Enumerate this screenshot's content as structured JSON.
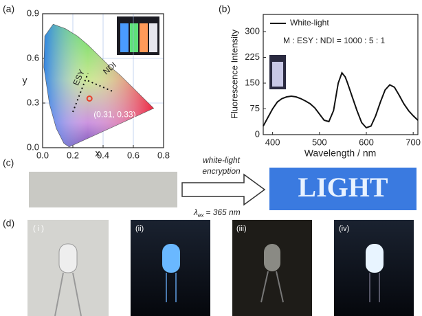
{
  "chart_data": [
    {
      "type": "scatter",
      "x_label": "x",
      "y_label": "y",
      "xlim": [
        0,
        0.8
      ],
      "ylim": [
        0,
        0.9
      ],
      "xticks": [
        {
          "value": 0,
          "label": "0.0"
        },
        0.2,
        0.4,
        0.6,
        0.8
      ],
      "yticks": [
        {
          "value": 0,
          "label": "0.0"
        },
        0.3,
        0.6,
        0.9
      ],
      "grid": true,
      "x": [
        0.31
      ],
      "values": [
        0.33
      ],
      "value_labels": [
        "(0.31, 0.33)"
      ],
      "color": "#e8402a",
      "annotations": [
        "ESY",
        "NDI"
      ]
    },
    {
      "type": "line",
      "x_label": "Wavelength / nm",
      "y_label": "Fluorescence Intensity",
      "xlim": [
        380,
        710
      ],
      "ylim": [
        0,
        350
      ],
      "xticks": [
        400,
        500,
        600,
        700
      ],
      "yticks": [
        0,
        75,
        150,
        225,
        300
      ],
      "x": [
        380,
        390,
        400,
        410,
        420,
        430,
        440,
        450,
        460,
        470,
        480,
        490,
        500,
        510,
        520,
        530,
        540,
        548,
        555,
        560,
        570,
        580,
        590,
        600,
        610,
        620,
        630,
        640,
        650,
        660,
        670,
        680,
        690,
        700,
        710
      ],
      "series": [
        {
          "name": "White-light",
          "color": "#111111",
          "values": [
            25,
            50,
            75,
            95,
            105,
            110,
            112,
            110,
            105,
            98,
            90,
            78,
            60,
            42,
            38,
            70,
            150,
            180,
            168,
            150,
            110,
            70,
            35,
            20,
            25,
            55,
            95,
            130,
            145,
            138,
            115,
            90,
            70,
            55,
            42
          ]
        }
      ],
      "annotation": "M : ESY : NDI = 1000 : 5 : 1",
      "legend": "upper left"
    }
  ],
  "panel_labels": [
    "(a)",
    "(b)",
    "(c)",
    "(d)"
  ],
  "encryption": {
    "label_lines": [
      "white-light",
      "encryption"
    ],
    "excitation": {
      "symbol": "λ",
      "subscript": "ex",
      "text": "= 365 nm"
    },
    "result_text": "LIGHT"
  },
  "led_labels": [
    "( i )",
    "(ii)",
    "(iii)",
    "(iv)"
  ]
}
